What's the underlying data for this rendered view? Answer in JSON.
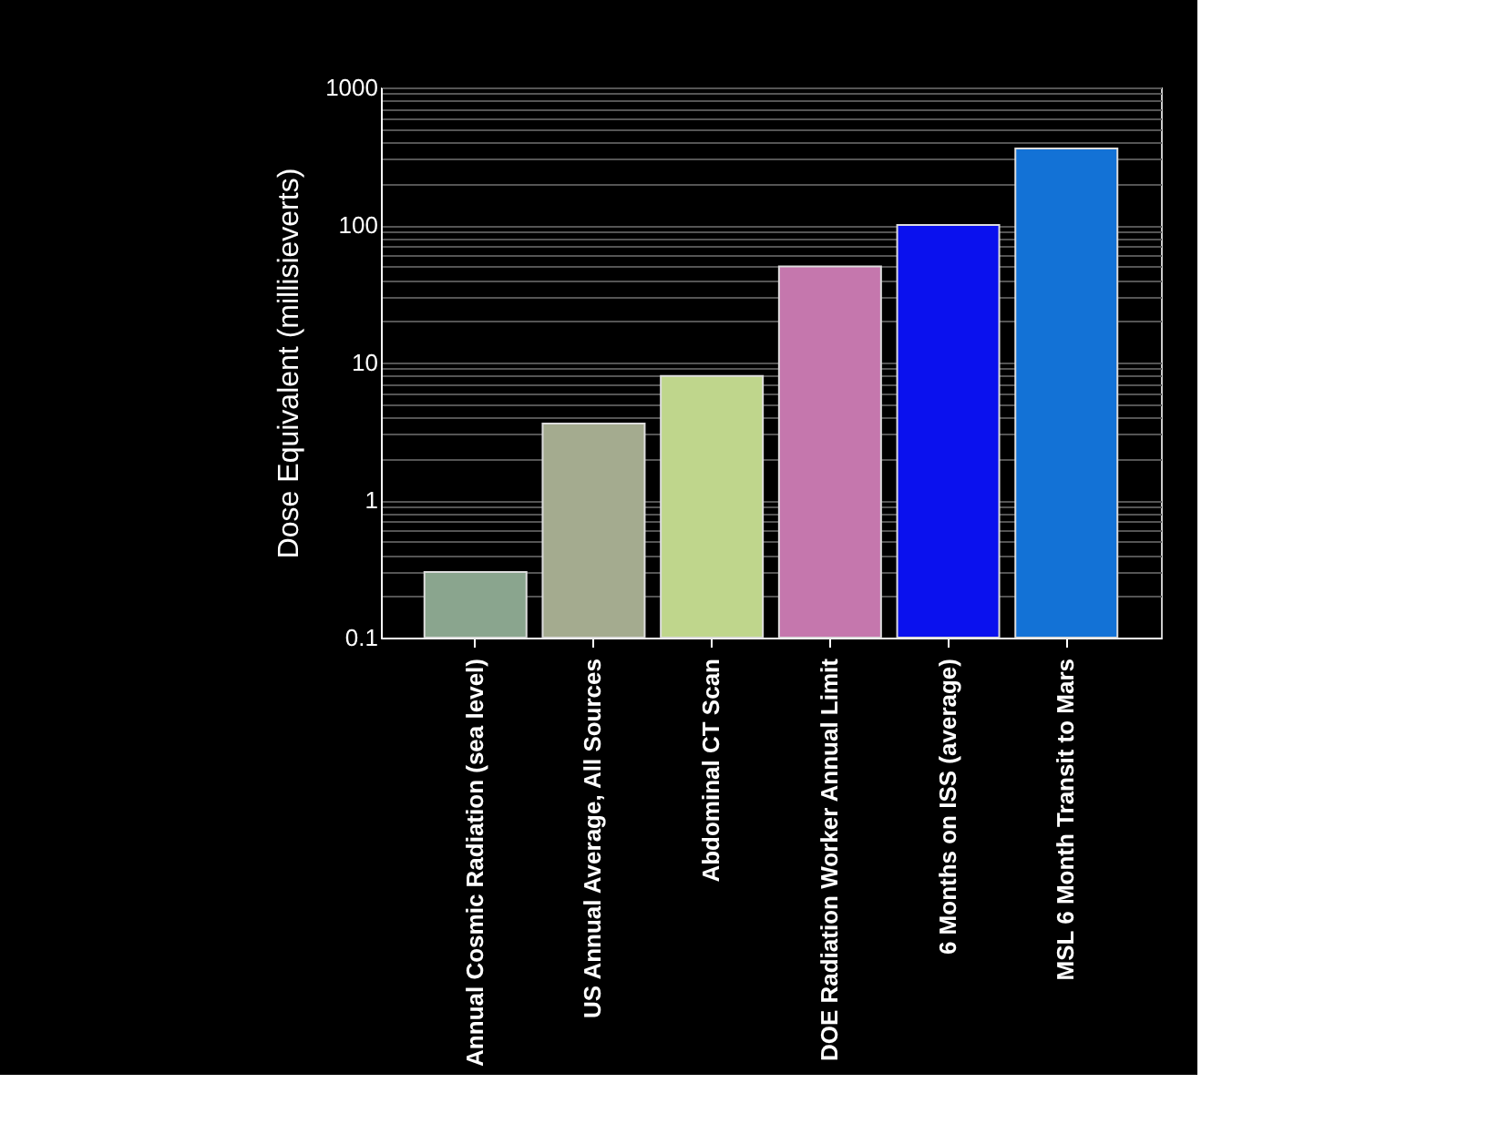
{
  "chart_data": {
    "type": "bar",
    "ylabel": "Dose Equivalent (millisieverts)",
    "categories": [
      "Annual Cosmic Radiation (sea level)",
      "US Annual Average, All Sources",
      "Abdominal CT Scan",
      "DOE Radiation Worker Annual Limit",
      "6 Months on ISS (average)",
      "MSL  6 Month Transit to Mars"
    ],
    "values": [
      0.3,
      3.6,
      8,
      50,
      100,
      360
    ],
    "colors": [
      "#8aa58e",
      "#a4ab8f",
      "#bfd68c",
      "#c577ad",
      "#0a11ee",
      "#1372d6"
    ],
    "log": true,
    "ylim": [
      0.1,
      1000
    ],
    "yticks": [
      0.1,
      {
        "value": 0.2,
        "label": null
      },
      {
        "value": 0.3,
        "label": null
      },
      {
        "value": 0.4,
        "label": null
      },
      {
        "value": 0.5,
        "label": null
      },
      {
        "value": 0.6,
        "label": null
      },
      {
        "value": 0.7,
        "label": null
      },
      {
        "value": 0.8,
        "label": null
      },
      {
        "value": 0.9,
        "label": null
      },
      1,
      {
        "value": 2,
        "label": null
      },
      {
        "value": 3,
        "label": null
      },
      {
        "value": 4,
        "label": null
      },
      {
        "value": 5,
        "label": null
      },
      {
        "value": 6,
        "label": null
      },
      {
        "value": 7,
        "label": null
      },
      {
        "value": 8,
        "label": null
      },
      {
        "value": 9,
        "label": null
      },
      10,
      {
        "value": 20,
        "label": null
      },
      {
        "value": 30,
        "label": null
      },
      {
        "value": 40,
        "label": null
      },
      {
        "value": 50,
        "label": null
      },
      {
        "value": 60,
        "label": null
      },
      {
        "value": 70,
        "label": null
      },
      {
        "value": 80,
        "label": null
      },
      {
        "value": 90,
        "label": null
      },
      100,
      {
        "value": 200,
        "label": null
      },
      {
        "value": 300,
        "label": null
      },
      {
        "value": 400,
        "label": null
      },
      {
        "value": 500,
        "label": null
      },
      {
        "value": 600,
        "label": null
      },
      {
        "value": 700,
        "label": null
      },
      {
        "value": 800,
        "label": null
      },
      {
        "value": 900,
        "label": null
      },
      1000
    ],
    "grid": "y"
  }
}
